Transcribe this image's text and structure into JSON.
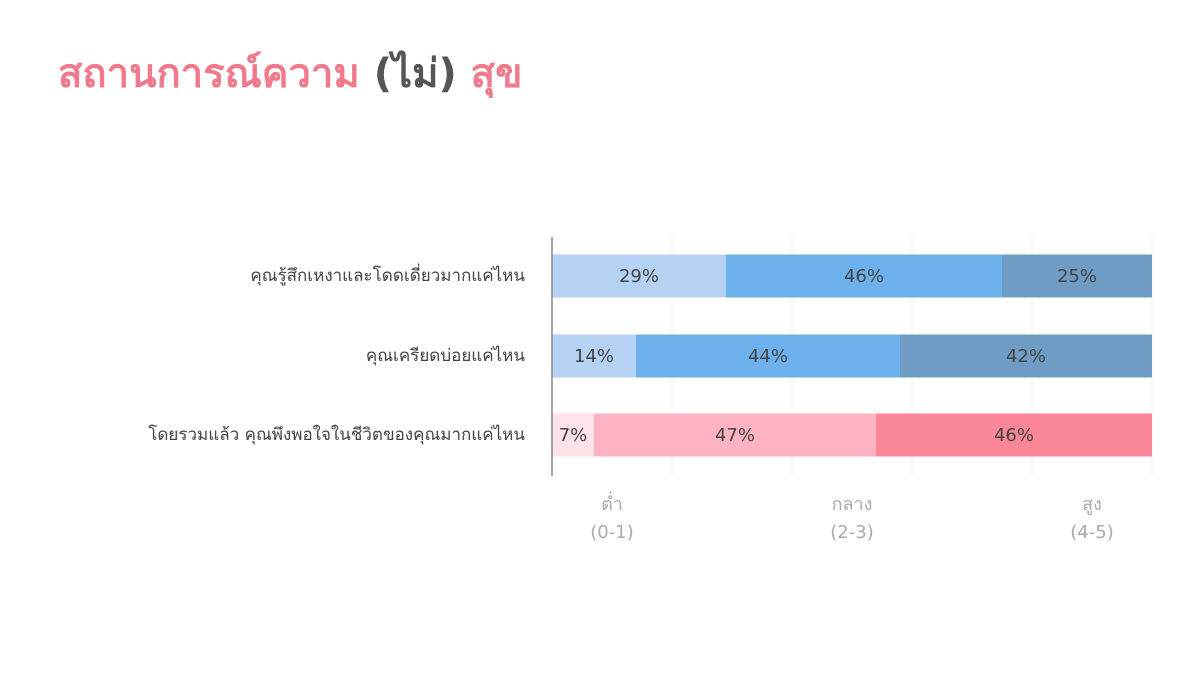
{
  "chart_data": {
    "type": "stacked_barh",
    "title_parts": [
      {
        "text": "สถานการณ์ความ ",
        "color": "#f07a8c"
      },
      {
        "text": "(ไม่)",
        "color": "#555555"
      },
      {
        "text": " สุข",
        "color": "#f07a8c"
      }
    ],
    "categories": [
      "คุณรู้สึกเหงาและโดดเดี่ยวมากแค่ไหน",
      "คุณเครียดบ่อยแค่ไหน",
      "โดยรวมแล้ว คุณพึงพอใจในชีวิตของคุณมากแค่ไหน"
    ],
    "series": [
      {
        "colors": [
          "#b5d2f5",
          "#b5d2f5",
          "#fde2e7"
        ],
        "values": [
          29,
          14,
          7
        ],
        "value_labels": [
          "29%",
          "14%",
          "7%"
        ]
      },
      {
        "colors": [
          "#6cb0ec",
          "#6cb0ec",
          "#fdb3c1"
        ],
        "values": [
          46,
          44,
          47
        ],
        "value_labels": [
          "46%",
          "44%",
          "47%"
        ]
      },
      {
        "colors": [
          "#6e9cc4",
          "#6e9cc4",
          "#fb8698"
        ],
        "values": [
          25,
          42,
          46
        ],
        "value_labels": [
          "25%",
          "42%",
          "46%"
        ]
      }
    ],
    "xlim": [
      0,
      100
    ],
    "xticks": [
      {
        "value": 10,
        "label": "ต่ำ\n(0-1)"
      },
      {
        "value": 50,
        "label": "กลาง\n(2-3)"
      },
      {
        "value": 90,
        "label": "สูง\n(4-5)"
      }
    ],
    "xgrid": [
      20,
      40,
      60,
      80,
      100
    ],
    "grid": true
  }
}
